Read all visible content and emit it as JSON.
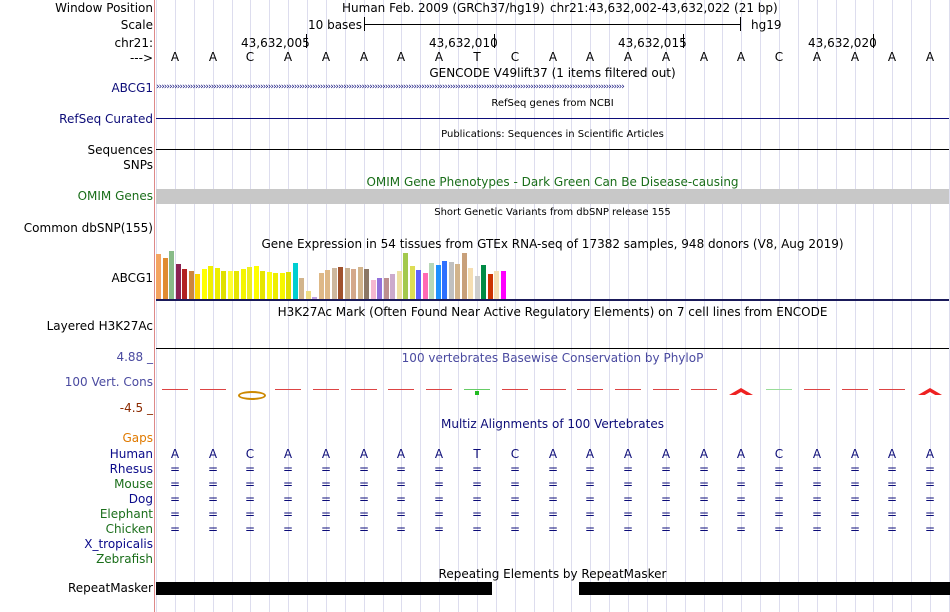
{
  "header": {
    "labels": [
      "Window Position",
      "Scale",
      "chr21:",
      "--->"
    ],
    "assembly": "Human Feb. 2009 (GRCh37/hg19)",
    "position": "chr21:43,632,002-43,632,022 (21 bp)",
    "scale_text": "10 bases",
    "scale_db": "hg19",
    "coords": [
      "43,632,005",
      "43,632,010",
      "43,632,015",
      "43,632,020"
    ]
  },
  "sequence": [
    "A",
    "A",
    "C",
    "A",
    "A",
    "A",
    "A",
    "A",
    "T",
    "C",
    "A",
    "A",
    "A",
    "A",
    "A",
    "A",
    "C",
    "A",
    "A",
    "A",
    "A"
  ],
  "tracks": {
    "gencode": {
      "label": "ABCG1",
      "title": "GENCODE V49lift37 (1 items filtered out)"
    },
    "refseq": {
      "label": "RefSeq Curated",
      "title": "RefSeq genes from NCBI"
    },
    "pubs": {
      "label": "Sequences",
      "title": "Publications: Sequences in Scientific Articles"
    },
    "snps": {
      "label": "SNPs"
    },
    "omim": {
      "label": "OMIM Genes",
      "title": "OMIM Gene Phenotypes - Dark Green Can Be Disease-causing"
    },
    "dbsnp": {
      "label": "Common dbSNP(155)",
      "title": "Short Genetic Variants from dbSNP release 155"
    },
    "gtex": {
      "label": "ABCG1",
      "title": "Gene Expression in 54 tissues from GTEx RNA-seq of 17382 samples, 948 donors (V8, Aug 2019)"
    },
    "h3k27ac": {
      "label": "Layered H3K27Ac",
      "title": "H3K27Ac Mark (Often Found Near Active Regulatory Elements) on 7 cell lines from ENCODE"
    },
    "cons": {
      "label": "100 Vert. Cons",
      "max": "4.88 _",
      "min": "-4.5 _",
      "title": "100 vertebrates Basewise Conservation by PhyloP"
    },
    "multiz": {
      "title": "Multiz Alignments of 100 Vertebrates",
      "gaps_label": "Gaps"
    },
    "repeat": {
      "label": "RepeatMasker",
      "title": "Repeating Elements by RepeatMasker"
    }
  },
  "species": [
    {
      "name": "Human",
      "color": "#0a0a8a"
    },
    {
      "name": "Rhesus",
      "color": "#0a0a8a"
    },
    {
      "name": "Mouse",
      "color": "#1a6e1a"
    },
    {
      "name": "Dog",
      "color": "#0a0a8a"
    },
    {
      "name": "Elephant",
      "color": "#1a6e1a"
    },
    {
      "name": "Chicken",
      "color": "#1a6e1a"
    },
    {
      "name": "X_tropicalis",
      "color": "#0a0a8a"
    },
    {
      "name": "Zebrafish",
      "color": "#1a6e1a"
    }
  ],
  "aligned_species_rows": 5,
  "aligned_symbol": "=",
  "gtex_values": [
    44,
    40,
    47,
    34,
    29,
    27,
    24,
    29,
    32,
    30,
    27,
    27,
    27,
    29,
    31,
    32,
    27,
    26,
    25,
    25,
    26,
    35,
    21,
    8,
    2,
    25,
    28,
    30,
    31,
    30,
    29,
    31,
    29,
    19,
    21,
    21,
    24,
    27,
    45,
    32,
    28,
    25,
    35,
    33,
    37,
    36,
    34,
    45,
    30,
    23,
    33,
    24,
    27,
    27
  ],
  "gtex_colors": [
    "#f4a460",
    "#e08c30",
    "#88bb88",
    "#8b2252",
    "#b22222",
    "#cd853f",
    "#ffd700",
    "#ffff00",
    "#f0f000",
    "#eeee00",
    "#e0e000",
    "#ffff33",
    "#e6e600",
    "#f5f500",
    "#eeee20",
    "#ffff00",
    "#e6e600",
    "#ffff10",
    "#eeee00",
    "#f7f700",
    "#e0e000",
    "#00ced1",
    "#d2b48c",
    "#eedd82",
    "#c0a0e0",
    "#deb887",
    "#deb887",
    "#cdb79e",
    "#a0522d",
    "#c8b090",
    "#d4a88a",
    "#d2b48c",
    "#8b7765",
    "#f5b7d0",
    "#9370db",
    "#bc8f8f",
    "#ccaacc",
    "#eee0a0",
    "#a3c94e",
    "#dddd55",
    "#6060ff",
    "#ff69b4",
    "#b8d8b8",
    "#1e90ff",
    "#3070ff",
    "#c0c0c0",
    "#d2b48c",
    "#c8a07a",
    "#f5deb3",
    "#cdcdcd",
    "#008b45",
    "#cc3300",
    "#f5deb3",
    "#ff00ff"
  ],
  "cons_marks": [
    {
      "type": "dash",
      "color": "#dd4444"
    },
    {
      "type": "dash",
      "color": "#dd4444"
    },
    {
      "type": "loop",
      "color": "#cc8800"
    },
    {
      "type": "dash",
      "color": "#dd4444"
    },
    {
      "type": "dash",
      "color": "#dd4444"
    },
    {
      "type": "dash",
      "color": "#dd4444"
    },
    {
      "type": "dash",
      "color": "#dd4444"
    },
    {
      "type": "dash",
      "color": "#dd4444"
    },
    {
      "type": "green",
      "color": "#22bb22"
    },
    {
      "type": "dash",
      "color": "#dd4444"
    },
    {
      "type": "dash",
      "color": "#dd4444"
    },
    {
      "type": "dash",
      "color": "#dd4444"
    },
    {
      "type": "dash",
      "color": "#dd4444"
    },
    {
      "type": "dash",
      "color": "#dd4444"
    },
    {
      "type": "dash",
      "color": "#dd4444"
    },
    {
      "type": "caret",
      "color": "#ee2222"
    },
    {
      "type": "dash",
      "color": "#99dd99"
    },
    {
      "type": "dash",
      "color": "#dd4444"
    },
    {
      "type": "dash",
      "color": "#dd4444"
    },
    {
      "type": "dash",
      "color": "#dd4444"
    },
    {
      "type": "caret",
      "color": "#ee2222"
    }
  ],
  "repeat_blocks": [
    {
      "start": 1,
      "end": 8.9
    },
    {
      "start": 12.2,
      "end": 22
    }
  ],
  "colors": {
    "gencode": "#0c0c78",
    "refseq": "#0c0c78",
    "omim_label": "#1a6e1a",
    "omim_title": "#1a6e1a",
    "omim_bar": "#c8c8c8",
    "cons": "#4a4aa0",
    "cons_min": "#8b2a00",
    "gaps": "#e07a00",
    "multiz": "#0c0c78"
  }
}
